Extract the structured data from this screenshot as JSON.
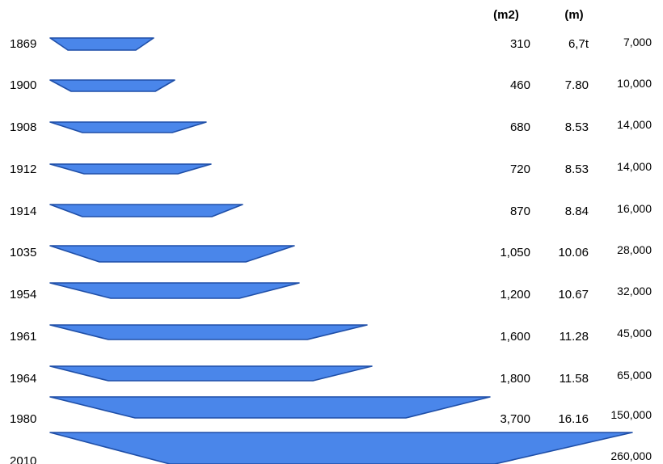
{
  "headers": {
    "area_unit": "(m2)",
    "depth_unit": "(m)"
  },
  "fill_color": "#4a86ea",
  "stroke_color": "#1f4fa8",
  "rows": [
    {
      "year": "1869",
      "area": "310",
      "depth": "6,7t",
      "capacity": "7,000"
    },
    {
      "year": "1900",
      "area": "460",
      "depth": "7.80",
      "capacity": "10,000"
    },
    {
      "year": "1908",
      "area": "680",
      "depth": "8.53",
      "capacity": "14,000"
    },
    {
      "year": "1912",
      "area": "720",
      "depth": "8.53",
      "capacity": "14,000"
    },
    {
      "year": "1914",
      "area": "870",
      "depth": "8.84",
      "capacity": "16,000"
    },
    {
      "year": "1035",
      "area": "1,050",
      "depth": "10.06",
      "capacity": "28,000"
    },
    {
      "year": "1954",
      "area": "1,200",
      "depth": "10.67",
      "capacity": "32,000"
    },
    {
      "year": "1961",
      "area": "1,600",
      "depth": "11.28",
      "capacity": "45,000"
    },
    {
      "year": "1964",
      "area": "1,800",
      "depth": "11.58",
      "capacity": "65,000"
    },
    {
      "year": "1980",
      "area": "3,700",
      "depth": "16.16",
      "capacity": "150,000"
    },
    {
      "year": "2010",
      "area": "",
      "depth": "",
      "capacity": "260,000"
    }
  ]
}
